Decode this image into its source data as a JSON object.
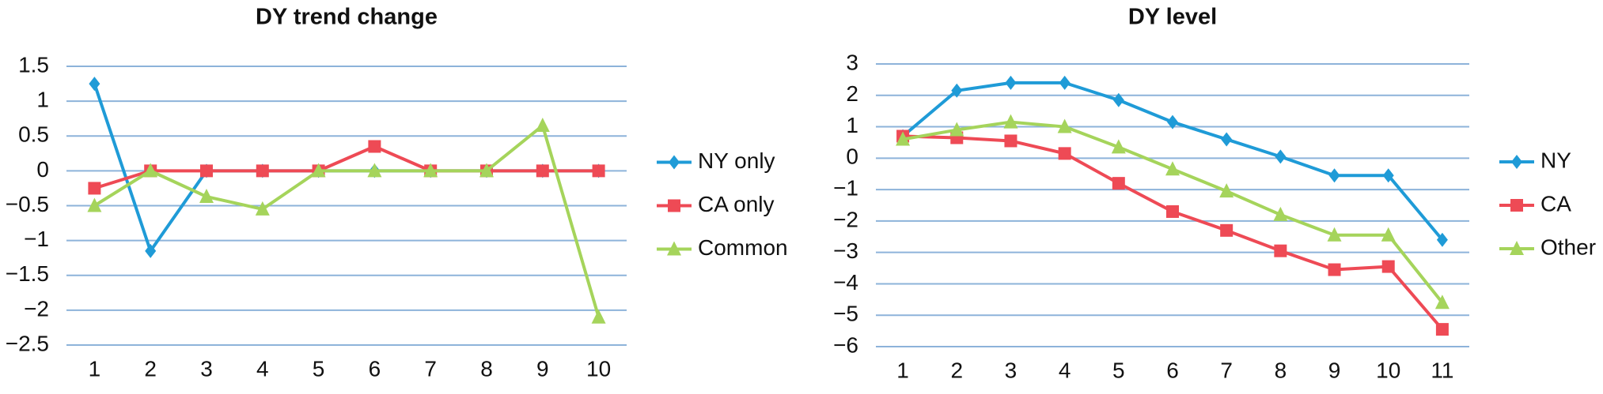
{
  "chart_data": [
    {
      "type": "line",
      "title": "DY trend change",
      "categories": [
        "1",
        "2",
        "3",
        "4",
        "5",
        "6",
        "7",
        "8",
        "9",
        "10"
      ],
      "series": [
        {
          "name": "NY only",
          "color": "#1f9bd7",
          "marker": "diamond",
          "values": [
            1.25,
            -1.15,
            0,
            0,
            0,
            0,
            0,
            0,
            0,
            0
          ]
        },
        {
          "name": "CA only",
          "color": "#ee4a55",
          "marker": "square",
          "values": [
            -0.25,
            0,
            0,
            0,
            0,
            0.35,
            0,
            0,
            0,
            0
          ]
        },
        {
          "name": "Common",
          "color": "#a5d45b",
          "marker": "triangle",
          "values": [
            -0.5,
            0,
            -0.37,
            -0.55,
            0,
            0,
            0,
            0,
            0.65,
            -2.1
          ]
        }
      ],
      "ylim": [
        -2.5,
        1.5
      ],
      "yticks": [
        {
          "value": -2.5,
          "label": "−2.5"
        },
        {
          "value": -2,
          "label": "−2"
        },
        {
          "value": -1.5,
          "label": "−1.5"
        },
        {
          "value": -1,
          "label": "−1"
        },
        {
          "value": -0.5,
          "label": "−0.5"
        },
        0,
        0.5,
        1,
        1.5
      ],
      "grid": true,
      "legend": "right"
    },
    {
      "type": "line",
      "title": "DY level",
      "categories": [
        "1",
        "2",
        "3",
        "4",
        "5",
        "6",
        "7",
        "8",
        "9",
        "10",
        "11"
      ],
      "series": [
        {
          "name": "NY",
          "color": "#1f9bd7",
          "marker": "diamond",
          "values": [
            0.7,
            2.15,
            2.4,
            2.4,
            1.85,
            1.15,
            0.6,
            0.05,
            -0.55,
            -0.55,
            -2.6
          ]
        },
        {
          "name": "CA",
          "color": "#ee4a55",
          "marker": "square",
          "values": [
            0.7,
            0.65,
            0.55,
            0.15,
            -0.8,
            -1.7,
            -2.3,
            -2.95,
            -3.55,
            -3.45,
            -5.45
          ]
        },
        {
          "name": "Other",
          "color": "#a5d45b",
          "marker": "triangle",
          "values": [
            0.6,
            0.9,
            1.15,
            1.0,
            0.35,
            -0.35,
            -1.05,
            -1.8,
            -2.45,
            -2.45,
            -4.6
          ]
        }
      ],
      "ylim": [
        -6,
        3
      ],
      "yticks": [
        {
          "value": -6,
          "label": "−6"
        },
        {
          "value": -5,
          "label": "−5"
        },
        {
          "value": -4,
          "label": "−4"
        },
        {
          "value": -3,
          "label": "−3"
        },
        {
          "value": -2,
          "label": "−2"
        },
        {
          "value": -1,
          "label": "−1"
        },
        0,
        1,
        2,
        3
      ],
      "grid": true,
      "legend": "right"
    }
  ]
}
